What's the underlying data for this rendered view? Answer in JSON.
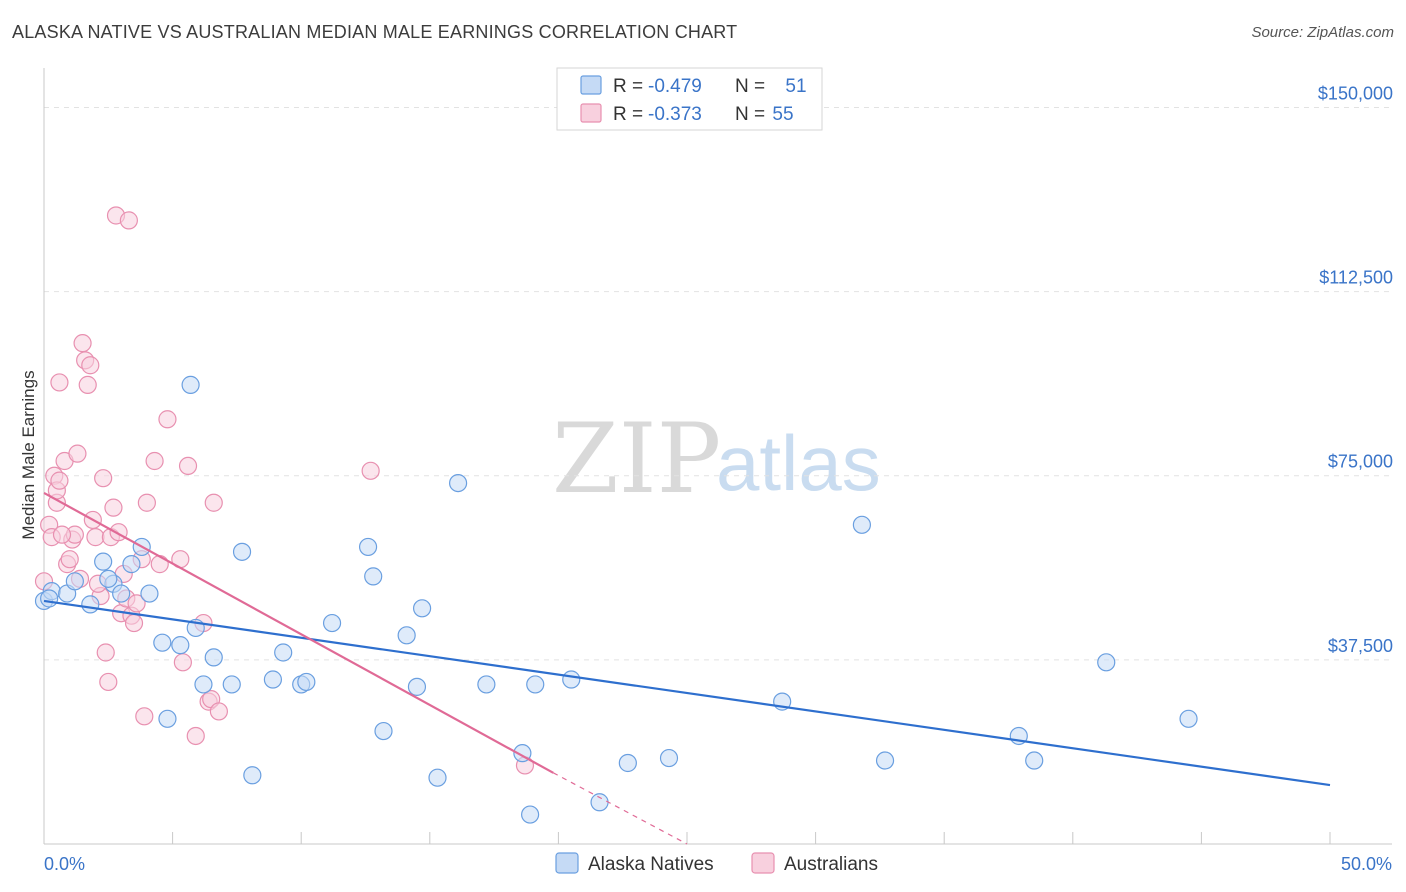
{
  "title": "ALASKA NATIVE VS AUSTRALIAN MEDIAN MALE EARNINGS CORRELATION CHART",
  "source": "Source: ZipAtlas.com",
  "watermark": {
    "left": "ZIP",
    "right": "atlas"
  },
  "colors": {
    "blue": "#6a9fe0",
    "blue_fill": "#c5daf5",
    "blue_line": "#2e6fce",
    "pink": "#e890b0",
    "pink_fill": "#f8d0de",
    "pink_line": "#e06a96",
    "tick_text": "#3a74c8",
    "grid": "#e2e2e2"
  },
  "legend": {
    "rows": [
      {
        "r_label": "R =",
        "r_value": "-0.479",
        "n_label": "N =",
        "n_value": "51"
      },
      {
        "r_label": "R =",
        "r_value": "-0.373",
        "n_label": "N =",
        "n_value": "55"
      }
    ]
  },
  "chart_data": {
    "type": "scatter",
    "title": "ALASKA NATIVE VS AUSTRALIAN MEDIAN MALE EARNINGS CORRELATION CHART",
    "xlabel": "",
    "ylabel": "Median Male Earnings",
    "xlim": [
      0,
      50
    ],
    "ylim": [
      0,
      156000
    ],
    "x_tick_labels": {
      "left": "0.0%",
      "right": "50.0%"
    },
    "y_ticks": [
      {
        "value": 37500,
        "label": "$37,500"
      },
      {
        "value": 75000,
        "label": "$75,000"
      },
      {
        "value": 112500,
        "label": "$112,500"
      },
      {
        "value": 150000,
        "label": "$150,000"
      }
    ],
    "series": [
      {
        "name": "Alaska Natives",
        "color": "#6a9fe0",
        "r": -0.479,
        "n": 51,
        "trend": {
          "x": [
            0,
            50
          ],
          "y": [
            49500,
            12000
          ]
        },
        "points": [
          [
            0.0,
            49500
          ],
          [
            0.3,
            51500
          ],
          [
            0.9,
            51000
          ],
          [
            1.2,
            53500
          ],
          [
            1.8,
            48800
          ],
          [
            2.3,
            57500
          ],
          [
            2.7,
            53000
          ],
          [
            3.0,
            51000
          ],
          [
            3.4,
            57000
          ],
          [
            3.8,
            60500
          ],
          [
            4.1,
            51000
          ],
          [
            4.6,
            41000
          ],
          [
            4.8,
            25500
          ],
          [
            5.3,
            40500
          ],
          [
            5.7,
            93500
          ],
          [
            5.9,
            44000
          ],
          [
            6.2,
            32500
          ],
          [
            6.6,
            38000
          ],
          [
            7.3,
            32500
          ],
          [
            7.7,
            59500
          ],
          [
            8.1,
            14000
          ],
          [
            8.9,
            33500
          ],
          [
            9.3,
            39000
          ],
          [
            10.0,
            32500
          ],
          [
            10.2,
            33000
          ],
          [
            11.2,
            45000
          ],
          [
            12.6,
            60500
          ],
          [
            12.8,
            54500
          ],
          [
            13.2,
            23000
          ],
          [
            14.1,
            42500
          ],
          [
            14.5,
            32000
          ],
          [
            14.7,
            48000
          ],
          [
            15.3,
            13500
          ],
          [
            16.1,
            73500
          ],
          [
            17.2,
            32500
          ],
          [
            18.6,
            18500
          ],
          [
            18.9,
            6000
          ],
          [
            19.1,
            32500
          ],
          [
            20.5,
            33500
          ],
          [
            21.6,
            8500
          ],
          [
            22.7,
            16500
          ],
          [
            24.3,
            17500
          ],
          [
            28.7,
            29000
          ],
          [
            31.8,
            65000
          ],
          [
            32.7,
            17000
          ],
          [
            37.9,
            22000
          ],
          [
            38.5,
            17000
          ],
          [
            41.3,
            37000
          ],
          [
            44.5,
            25500
          ],
          [
            0.2,
            50000
          ],
          [
            2.5,
            54000
          ]
        ]
      },
      {
        "name": "Australians",
        "color": "#e890b0",
        "r": -0.373,
        "n": 55,
        "trend": {
          "x": [
            0,
            19.8
          ],
          "y": [
            71500,
            14500
          ]
        },
        "trend_dashed": {
          "x": [
            19.8,
            25
          ],
          "y": [
            14500,
            0
          ]
        },
        "points": [
          [
            0.0,
            53500
          ],
          [
            0.2,
            65000
          ],
          [
            0.3,
            62500
          ],
          [
            0.4,
            75000
          ],
          [
            0.5,
            69500
          ],
          [
            0.5,
            72000
          ],
          [
            0.6,
            74000
          ],
          [
            0.8,
            78000
          ],
          [
            0.9,
            57000
          ],
          [
            1.0,
            58000
          ],
          [
            1.1,
            62000
          ],
          [
            1.2,
            63000
          ],
          [
            1.3,
            79500
          ],
          [
            1.5,
            102000
          ],
          [
            1.6,
            98500
          ],
          [
            1.7,
            93500
          ],
          [
            1.8,
            97500
          ],
          [
            1.9,
            66000
          ],
          [
            2.0,
            62500
          ],
          [
            2.2,
            50500
          ],
          [
            2.3,
            74500
          ],
          [
            2.4,
            39000
          ],
          [
            2.5,
            33000
          ],
          [
            2.6,
            62500
          ],
          [
            2.7,
            68500
          ],
          [
            2.8,
            128000
          ],
          [
            2.9,
            63500
          ],
          [
            3.0,
            47000
          ],
          [
            3.2,
            50000
          ],
          [
            3.3,
            127000
          ],
          [
            3.4,
            46500
          ],
          [
            3.5,
            45000
          ],
          [
            3.6,
            49000
          ],
          [
            3.8,
            58000
          ],
          [
            3.9,
            26000
          ],
          [
            4.0,
            69500
          ],
          [
            4.3,
            78000
          ],
          [
            4.5,
            57000
          ],
          [
            4.8,
            86500
          ],
          [
            5.3,
            58000
          ],
          [
            5.4,
            37000
          ],
          [
            5.6,
            77000
          ],
          [
            5.9,
            22000
          ],
          [
            6.2,
            45000
          ],
          [
            6.4,
            29000
          ],
          [
            6.5,
            29500
          ],
          [
            6.6,
            69500
          ],
          [
            6.8,
            27000
          ],
          [
            12.7,
            76000
          ],
          [
            18.7,
            16000
          ],
          [
            0.6,
            94000
          ],
          [
            1.4,
            54000
          ],
          [
            3.1,
            55000
          ],
          [
            2.1,
            53000
          ],
          [
            0.7,
            63000
          ]
        ]
      }
    ],
    "legend_bottom": [
      "Alaska Natives",
      "Australians"
    ]
  }
}
